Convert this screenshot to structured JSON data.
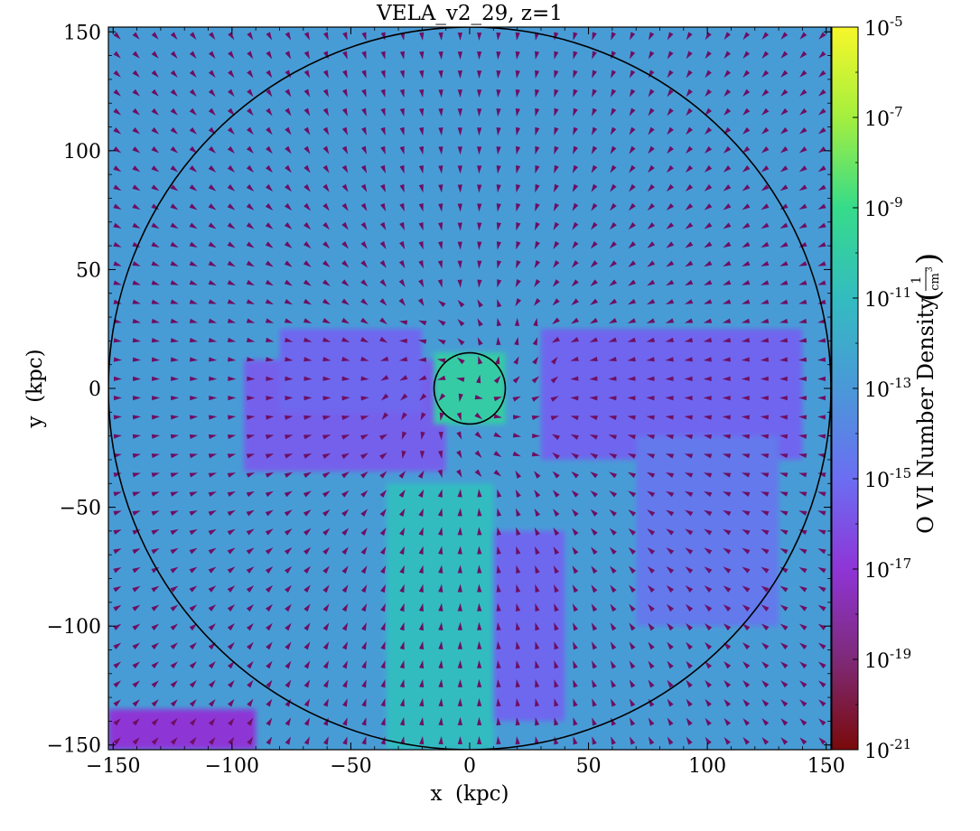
{
  "chart_data": {
    "type": "heatmap",
    "title": "VELA_v2_29, z=1",
    "xlabel": "x  (kpc)",
    "ylabel": "y  (kpc)",
    "xlim": [
      -152,
      152
    ],
    "ylim": [
      -152,
      152
    ],
    "x_ticks": [
      -150,
      -100,
      -50,
      0,
      50,
      100,
      150
    ],
    "y_ticks": [
      -150,
      -100,
      -50,
      0,
      50,
      100,
      150
    ],
    "x_tick_labels": [
      "−150",
      "−100",
      "−50",
      "0",
      "50",
      "100",
      "150"
    ],
    "y_tick_labels": [
      "−150",
      "−100",
      "−50",
      "0",
      "50",
      "100",
      "150"
    ],
    "colorbar": {
      "label": "O VI Number Density",
      "unit_numerator": "1",
      "unit_denominator": "cm",
      "unit_exponent": "3",
      "scale": "log",
      "range_exponent": [
        -21,
        -5
      ],
      "tick_exponents": [
        -5,
        -7,
        -9,
        -11,
        -13,
        -15,
        -17,
        -19,
        -21
      ],
      "tick_base": "10",
      "colormap_stops": [
        "#7a0a0a",
        "#7e2a78",
        "#8e35d6",
        "#6b6ef2",
        "#4a98d8",
        "#33bcc0",
        "#36db8a",
        "#a4ef3e",
        "#f7f72a"
      ]
    },
    "circles": [
      {
        "name": "outer radius",
        "center": [
          0,
          0
        ],
        "radius_kpc": 152
      },
      {
        "name": "inner radius",
        "center": [
          0,
          0
        ],
        "radius_kpc": 15
      }
    ],
    "quiver": {
      "spacing_kpc": 8,
      "color": "#6e0f62"
    },
    "regions": [
      {
        "desc": "background",
        "x": [
          -152,
          152
        ],
        "y": [
          -152,
          152
        ],
        "log_density": -12.8
      },
      {
        "desc": "left low-density slab",
        "x": [
          -95,
          -10
        ],
        "y": [
          -35,
          12
        ],
        "log_density": -15.5
      },
      {
        "desc": "left upper slab",
        "x": [
          -80,
          -20
        ],
        "y": [
          -10,
          25
        ],
        "log_density": -15.2
      },
      {
        "desc": "right low-density slab",
        "x": [
          30,
          140
        ],
        "y": [
          -30,
          25
        ],
        "log_density": -15.3
      },
      {
        "desc": "right lower slab",
        "x": [
          70,
          130
        ],
        "y": [
          -100,
          -20
        ],
        "log_density": -14.5
      },
      {
        "desc": "lower channel",
        "x": [
          0,
          40
        ],
        "y": [
          -140,
          -60
        ],
        "log_density": -15.2
      },
      {
        "desc": "bottom-left corner",
        "x": [
          -152,
          -90
        ],
        "y": [
          -152,
          -135
        ],
        "log_density": -17.0
      },
      {
        "desc": "southern filament",
        "x": [
          -35,
          10
        ],
        "y": [
          -152,
          -40
        ],
        "log_density": -11.0
      },
      {
        "desc": "central disk",
        "x": [
          -15,
          15
        ],
        "y": [
          -15,
          15
        ],
        "log_density": -10.0
      }
    ]
  }
}
